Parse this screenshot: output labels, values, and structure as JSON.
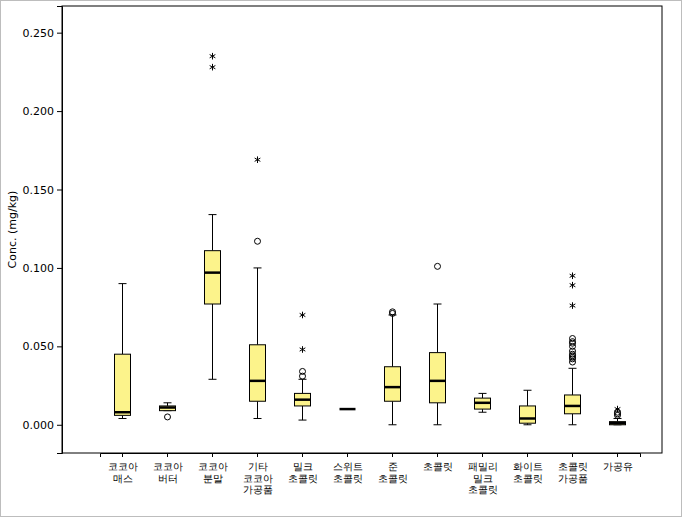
{
  "chart_data": {
    "type": "box",
    "y_label": "Conc. (mg/kg)",
    "categories": [
      "코코아 매스",
      "코코아 버터",
      "코코아 분말",
      "기타 코코아 가공품",
      "밀크 초콜릿",
      "스위트 초콜릿",
      "준 초콜릿",
      "초콜릿",
      "패밀리 밀크 초콜릿",
      "화이트 초콜릿",
      "초콜릿 가공품",
      "가공유"
    ],
    "whisker_low": [
      0.004,
      0.009,
      0.029,
      0.004,
      0.003,
      0.01,
      0.0,
      0.0,
      0.008,
      0.0,
      0.0,
      0.0
    ],
    "q1": [
      0.006,
      0.009,
      0.077,
      0.015,
      0.012,
      0.01,
      0.015,
      0.014,
      0.01,
      0.001,
      0.007,
      0.0
    ],
    "median": [
      0.008,
      0.011,
      0.097,
      0.028,
      0.016,
      0.01,
      0.024,
      0.028,
      0.014,
      0.004,
      0.012,
      0.001
    ],
    "q3": [
      0.045,
      0.012,
      0.111,
      0.051,
      0.02,
      0.01,
      0.037,
      0.046,
      0.017,
      0.012,
      0.019,
      0.002
    ],
    "whisker_high": [
      0.09,
      0.014,
      0.134,
      0.1,
      0.029,
      0.01,
      0.07,
      0.077,
      0.02,
      0.022,
      0.036,
      0.004
    ],
    "outliers": [
      [],
      [
        0.005
      ],
      [],
      [
        0.117
      ],
      [
        0.031,
        0.034
      ],
      [],
      [
        0.071,
        0.072
      ],
      [
        0.101
      ],
      [],
      [],
      [
        0.04,
        0.042,
        0.043,
        0.044,
        0.045,
        0.047,
        0.05,
        0.052,
        0.053,
        0.055
      ],
      [
        0.006,
        0.007,
        0.008
      ]
    ],
    "extremes": [
      [],
      [],
      [
        0.228,
        0.235
      ],
      [
        0.169
      ],
      [
        0.048,
        0.07
      ],
      [],
      [],
      [],
      [],
      [],
      [
        0.076,
        0.089,
        0.095
      ],
      [
        0.01
      ]
    ],
    "color": "#fcf38b",
    "ylim": [
      -0.018,
      0.267
    ],
    "yticks": [
      {
        "value": 0,
        "label": "0.000"
      },
      {
        "value": 0.05,
        "label": "0.050"
      },
      {
        "value": 0.1,
        "label": "0.100"
      },
      {
        "value": 0.15,
        "label": "0.150"
      },
      {
        "value": 0.2,
        "label": "0.200"
      },
      {
        "value": 0.25,
        "label": "0.250"
      }
    ],
    "grid": false
  }
}
